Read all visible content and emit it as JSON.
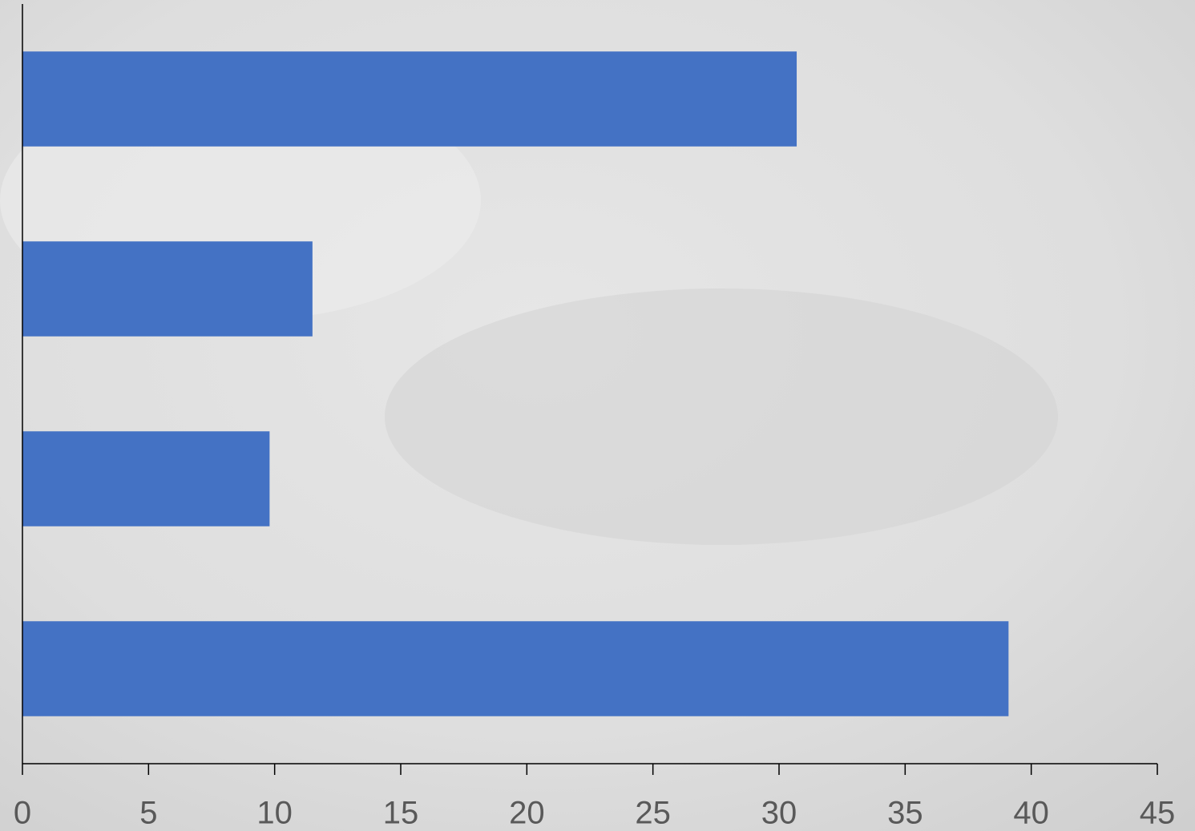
{
  "chart_data": {
    "type": "barh",
    "categories": [
      null,
      null,
      null,
      null
    ],
    "values": [
      30.7,
      11.5,
      9.8,
      39.1
    ],
    "color": "#4472c4",
    "xlim": [
      0,
      45
    ],
    "xticks": [
      0,
      5,
      10,
      15,
      20,
      25,
      30,
      35,
      40,
      45
    ]
  }
}
